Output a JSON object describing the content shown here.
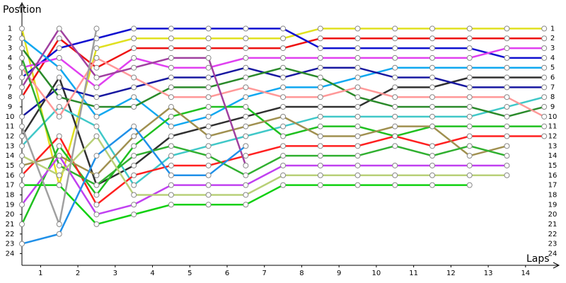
{
  "chart_data": {
    "type": "line",
    "ylabel": "Position",
    "xlabel": "Laps",
    "x": [
      0,
      1,
      2,
      3,
      4,
      5,
      6,
      7,
      8,
      9,
      10,
      11,
      12,
      13,
      14
    ],
    "xlim": [
      0,
      14.3
    ],
    "xticks": [
      {
        "value": 0.5,
        "label": "1"
      },
      {
        "value": 1.5,
        "label": "2"
      },
      {
        "value": 2.5,
        "label": "3"
      },
      {
        "value": 3.5,
        "label": "4"
      },
      {
        "value": 4.5,
        "label": "5"
      },
      {
        "value": 5.5,
        "label": "6"
      },
      {
        "value": 6.5,
        "label": "7"
      },
      {
        "value": 7.5,
        "label": "8"
      },
      {
        "value": 8.5,
        "label": "9"
      },
      {
        "value": 9.5,
        "label": "10"
      },
      {
        "value": 10.5,
        "label": "11"
      },
      {
        "value": 11.5,
        "label": "12"
      },
      {
        "value": 12.5,
        "label": "13"
      },
      {
        "value": 13.5,
        "label": "14"
      }
    ],
    "ylim": [
      25.2,
      -1.2
    ],
    "yticks": [
      1,
      2,
      3,
      4,
      5,
      6,
      7,
      8,
      9,
      10,
      11,
      12,
      13,
      14,
      15,
      16,
      17,
      18,
      19,
      20,
      21,
      22,
      23,
      24
    ],
    "grid": false,
    "series": [
      {
        "color": "#e0e020",
        "values": [
          1,
          17,
          3,
          2,
          2,
          2,
          2,
          2,
          1,
          1,
          1,
          1,
          1,
          1,
          1
        ]
      },
      {
        "color": "#ee1111",
        "values": [
          8,
          2,
          5,
          3,
          3,
          3,
          3,
          3,
          2,
          2,
          2,
          2,
          2,
          2,
          2
        ]
      },
      {
        "color": "#1010d0",
        "values": [
          6,
          3,
          2,
          1,
          1,
          1,
          1,
          1,
          3,
          3,
          3,
          3,
          3,
          4,
          4
        ]
      },
      {
        "color": "#e040f0",
        "values": [
          5,
          4,
          7,
          4,
          5,
          5,
          4,
          4,
          4,
          4,
          4,
          4,
          4,
          3,
          3
        ]
      },
      {
        "color": "#10a8f0",
        "values": [
          2,
          5,
          10,
          8,
          11,
          10,
          8,
          7,
          7,
          6,
          5,
          5,
          5,
          5,
          5
        ]
      },
      {
        "color": "#303030",
        "values": [
          12,
          6,
          17,
          15,
          12,
          11,
          10,
          9,
          9,
          9,
          7,
          7,
          6,
          6,
          6
        ]
      },
      {
        "color": "#1818a0",
        "values": [
          10,
          7,
          8,
          7,
          6,
          6,
          5,
          6,
          5,
          5,
          6,
          6,
          7,
          7,
          7
        ]
      },
      {
        "color": "#40c8c8",
        "values": [
          13,
          9,
          11,
          17,
          14,
          13,
          12,
          11,
          10,
          10,
          10,
          10,
          10,
          9,
          8
        ]
      },
      {
        "color": "#2a8a2a",
        "values": [
          3,
          8,
          9,
          9,
          7,
          7,
          6,
          5,
          6,
          8,
          9,
          9,
          9,
          10,
          9
        ]
      },
      {
        "color": "#ff9898",
        "values": [
          5,
          10,
          4,
          6,
          8,
          8,
          7,
          8,
          8,
          7,
          8,
          8,
          8,
          8,
          10
        ]
      },
      {
        "color": "#20c020",
        "values": [
          21,
          13,
          18,
          13,
          10,
          9,
          9,
          12,
          11,
          11,
          12,
          11,
          11,
          11,
          11
        ]
      },
      {
        "color": "#ff2020",
        "values": [
          16,
          12,
          19,
          16,
          15,
          15,
          14,
          13,
          13,
          13,
          12,
          13,
          12,
          12,
          12
        ]
      },
      {
        "color": "#a09050",
        "values": [
          15,
          14,
          16,
          12,
          9,
          12,
          11,
          10,
          12,
          12,
          11,
          11,
          14,
          13,
          null
        ]
      },
      {
        "color": "#30b030",
        "values": [
          4,
          15,
          17,
          14,
          13,
          14,
          16,
          14,
          14,
          14,
          13,
          14,
          13,
          14,
          null
        ]
      },
      {
        "color": "#c040f0",
        "values": [
          19,
          14,
          20,
          19,
          17,
          17,
          17,
          15,
          15,
          15,
          15,
          15,
          15,
          15,
          null
        ]
      },
      {
        "color": "#b8d078",
        "values": [
          14,
          16,
          12,
          18,
          18,
          18,
          18,
          16,
          16,
          16,
          16,
          16,
          16,
          16,
          null
        ]
      },
      {
        "color": "#10d010",
        "values": [
          17,
          17,
          21,
          20,
          19,
          19,
          19,
          17,
          17,
          17,
          17,
          17,
          17,
          null,
          null
        ]
      },
      {
        "color": "#a040a0",
        "values": [
          7,
          1,
          6,
          5,
          4,
          4,
          15,
          null,
          null,
          null,
          null,
          null,
          null,
          null,
          null
        ]
      },
      {
        "color": "#2090e8",
        "values": [
          23,
          22,
          14,
          11,
          16,
          16,
          13,
          null,
          null,
          null,
          null,
          null,
          null,
          null,
          null
        ]
      },
      {
        "color": "#a0a0a0",
        "values": [
          11,
          21,
          1,
          null,
          null,
          null,
          null,
          null,
          null,
          null,
          null,
          null,
          null,
          null,
          null
        ]
      }
    ]
  }
}
